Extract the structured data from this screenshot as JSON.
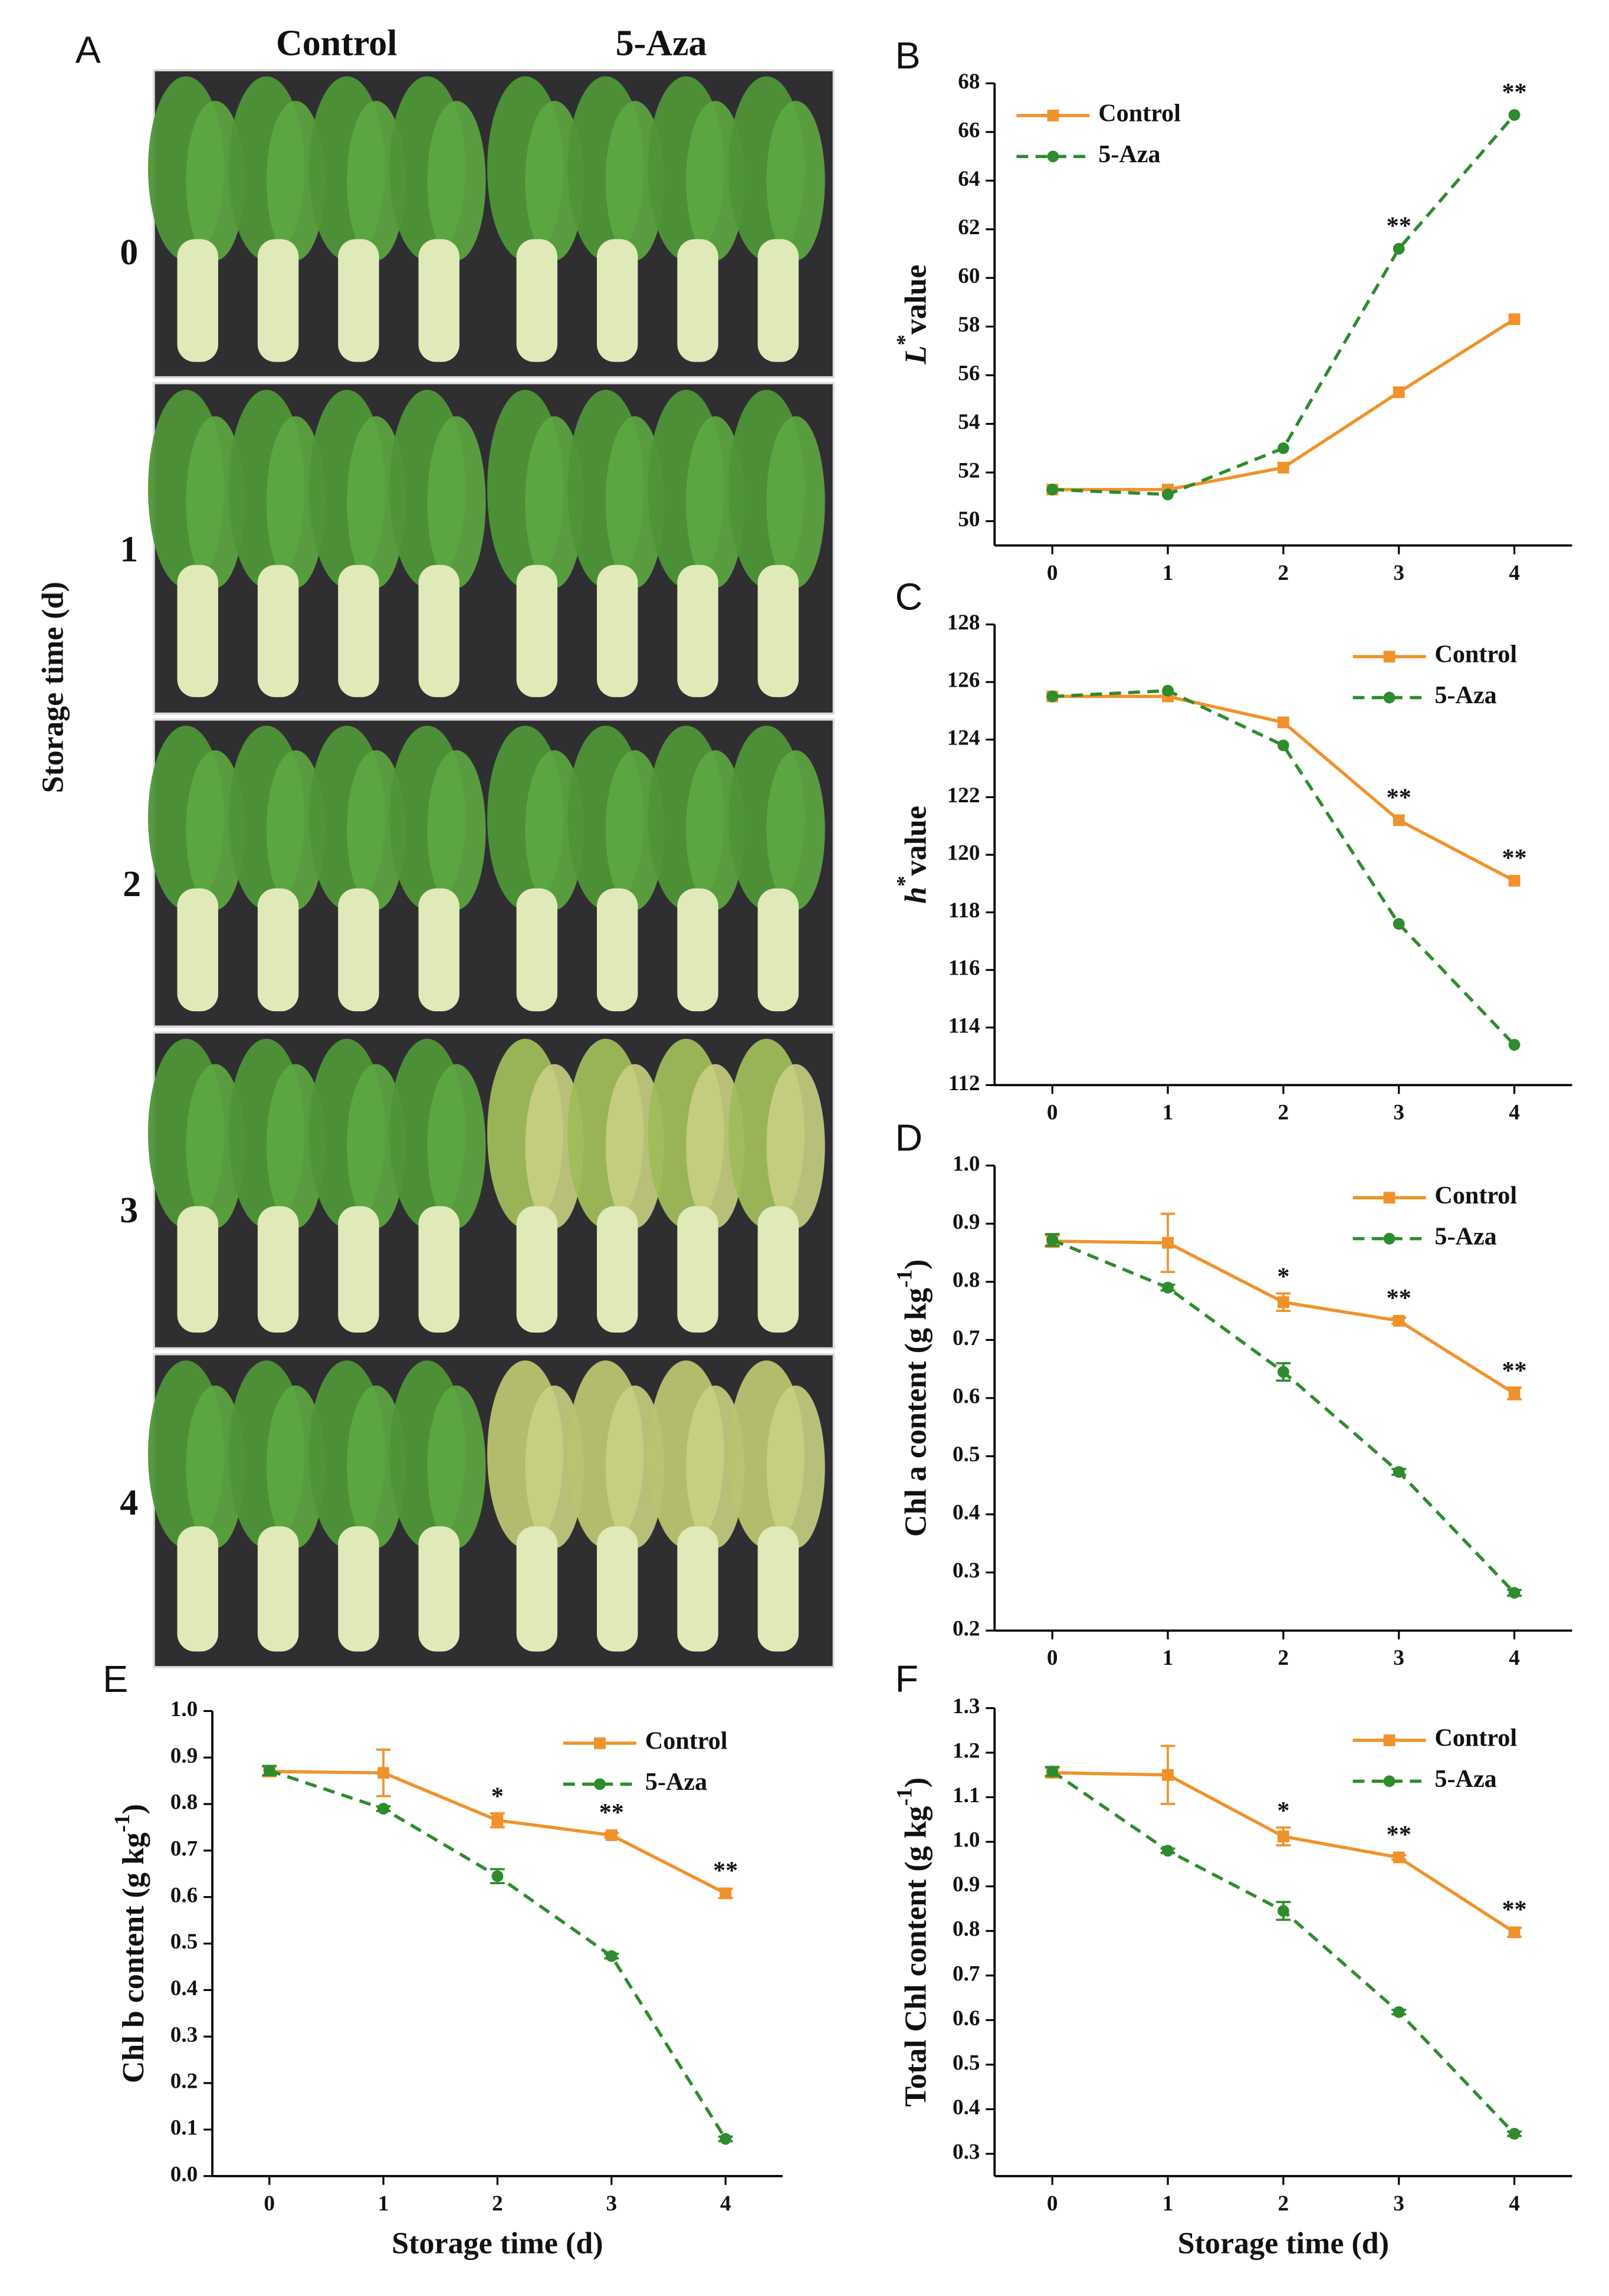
{
  "photo_panel": {
    "panel": "A",
    "columns": [
      "Control",
      "5-Aza"
    ],
    "rows": [
      "0",
      "1",
      "2",
      "3",
      "4"
    ],
    "ylabel": "Storage time (d)"
  },
  "chart_data": [
    {
      "type": "line",
      "panel": "B",
      "ylabel": [
        {
          "text": "L",
          "italic": true
        },
        {
          "text": "*",
          "sup": true
        },
        {
          "text": "value"
        }
      ],
      "x": [
        0,
        1,
        2,
        3,
        4
      ],
      "xlim": [
        -0.5,
        4.5
      ],
      "xticks": [
        0,
        1,
        2,
        3,
        4
      ],
      "ylim": [
        49,
        68
      ],
      "yticks": [
        50,
        52,
        54,
        56,
        58,
        60,
        62,
        64,
        66,
        68
      ],
      "legend": "upper left",
      "series": [
        {
          "name": "Control",
          "color": "#f0922b",
          "marker": "square",
          "dashed": false,
          "values": [
            51.3,
            51.3,
            52.2,
            55.3,
            58.3
          ]
        },
        {
          "name": "5-Aza",
          "color": "#2e8b2e",
          "marker": "circle",
          "dashed": true,
          "values": [
            51.3,
            51.1,
            53.0,
            61.2,
            66.7
          ],
          "labels": [
            null,
            null,
            null,
            "**",
            "**"
          ]
        }
      ]
    },
    {
      "type": "line",
      "panel": "C",
      "ylabel": [
        {
          "text": "h",
          "italic": true
        },
        {
          "text": "*",
          "sup": true
        },
        {
          "text": "value"
        }
      ],
      "x": [
        0,
        1,
        2,
        3,
        4
      ],
      "xlim": [
        -0.5,
        4.5
      ],
      "xticks": [
        0,
        1,
        2,
        3,
        4
      ],
      "ylim": [
        112,
        128
      ],
      "yticks": [
        112,
        114,
        116,
        118,
        120,
        122,
        124,
        126,
        128
      ],
      "legend": "upper right",
      "series": [
        {
          "name": "Control",
          "color": "#f0922b",
          "marker": "square",
          "dashed": false,
          "values": [
            125.5,
            125.5,
            124.6,
            121.2,
            119.1
          ],
          "labels": [
            null,
            null,
            null,
            "**",
            "**"
          ]
        },
        {
          "name": "5-Aza",
          "color": "#2e8b2e",
          "marker": "circle",
          "dashed": true,
          "values": [
            125.5,
            125.7,
            123.8,
            117.6,
            113.4
          ]
        }
      ]
    },
    {
      "type": "line",
      "panel": "D",
      "ylabel": [
        {
          "text": "Chl a content (g kg"
        },
        {
          "text": "-1",
          "sup": true
        },
        {
          "text": ")"
        }
      ],
      "x": [
        0,
        1,
        2,
        3,
        4
      ],
      "xlim": [
        -0.5,
        4.5
      ],
      "xticks": [
        0,
        1,
        2,
        3,
        4
      ],
      "ylim": [
        0.2,
        1.0
      ],
      "yticks": [
        0.2,
        0.3,
        0.4,
        0.5,
        0.6,
        0.7,
        0.8,
        0.9,
        {
          "value": 1.0,
          "label": "1.0"
        }
      ],
      "legend": "upper right",
      "series": [
        {
          "name": "Control",
          "color": "#f0922b",
          "marker": "square",
          "dashed": false,
          "values": [
            0.87,
            0.867,
            0.765,
            0.733,
            0.608
          ],
          "errors": [
            0.01,
            0.05,
            0.015,
            0.005,
            0.01
          ],
          "labels": [
            null,
            null,
            "*",
            "**",
            "**"
          ]
        },
        {
          "name": "5-Aza",
          "color": "#2e8b2e",
          "marker": "circle",
          "dashed": true,
          "values": [
            0.872,
            0.79,
            0.645,
            0.473,
            0.265
          ],
          "errors": [
            0.01,
            0.005,
            0.015,
            0.005,
            0.005
          ]
        }
      ]
    },
    {
      "type": "line",
      "panel": "E",
      "ylabel": [
        {
          "text": "Chl b content (g kg"
        },
        {
          "text": "-1",
          "sup": true
        },
        {
          "text": ")"
        }
      ],
      "xlabel": "Storage time (d)",
      "x": [
        0,
        1,
        2,
        3,
        4
      ],
      "xlim": [
        -0.5,
        4.5
      ],
      "xticks": [
        0,
        1,
        2,
        3,
        4
      ],
      "ylim": [
        0,
        1.0
      ],
      "yticks": [
        {
          "value": 0,
          "label": "0.0"
        },
        0.1,
        0.2,
        0.3,
        0.4,
        0.5,
        0.6,
        0.7,
        0.8,
        0.9,
        {
          "value": 1.0,
          "label": "1.0"
        }
      ],
      "legend": "upper right",
      "series": [
        {
          "name": "Control",
          "color": "#f0922b",
          "marker": "square",
          "dashed": false,
          "values": [
            0.87,
            0.867,
            0.765,
            0.733,
            0.608
          ],
          "errors": [
            0.01,
            0.05,
            0.015,
            0.005,
            0.01
          ],
          "labels": [
            null,
            null,
            "*",
            "**",
            "**"
          ]
        },
        {
          "name": "5-Aza",
          "color": "#2e8b2e",
          "marker": "circle",
          "dashed": true,
          "values": [
            0.872,
            0.79,
            0.645,
            0.473,
            0.08
          ],
          "errors": [
            0.01,
            0.005,
            0.015,
            0.005,
            0.005
          ]
        }
      ]
    },
    {
      "type": "line",
      "panel": "F",
      "ylabel": [
        {
          "text": "Total Chl content (g kg"
        },
        {
          "text": "-1",
          "sup": true
        },
        {
          "text": ")"
        }
      ],
      "xlabel": "Storage time (d)",
      "x": [
        0,
        1,
        2,
        3,
        4
      ],
      "xlim": [
        -0.5,
        4.5
      ],
      "xticks": [
        0,
        1,
        2,
        3,
        4
      ],
      "ylim": [
        0.25,
        1.3
      ],
      "yticks": [
        0.3,
        0.4,
        0.5,
        0.6,
        0.7,
        0.8,
        0.9,
        {
          "value": 1.0,
          "label": "1.0"
        },
        1.1,
        1.2,
        1.3
      ],
      "legend": "upper right",
      "series": [
        {
          "name": "Control",
          "color": "#f0922b",
          "marker": "square",
          "dashed": false,
          "values": [
            1.155,
            1.15,
            1.012,
            0.965,
            0.797
          ],
          "errors": [
            0.01,
            0.065,
            0.02,
            0.005,
            0.01
          ],
          "labels": [
            null,
            null,
            "*",
            "**",
            "**"
          ]
        },
        {
          "name": "5-Aza",
          "color": "#2e8b2e",
          "marker": "circle",
          "dashed": true,
          "values": [
            1.158,
            0.98,
            0.845,
            0.618,
            0.345
          ],
          "errors": [
            0.01,
            0.005,
            0.02,
            0.005,
            0.005
          ]
        }
      ]
    }
  ]
}
